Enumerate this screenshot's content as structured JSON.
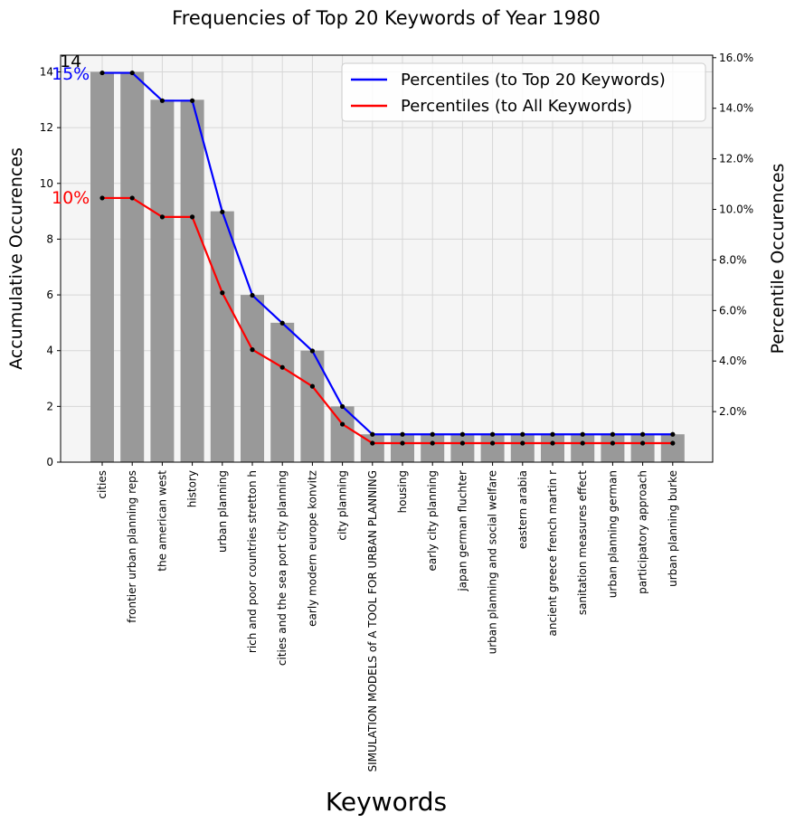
{
  "chart_data": {
    "type": "bar",
    "title": "Frequencies of Top 20 Keywords of Year 1980",
    "xlabel": "Keywords",
    "ylabel": "Accumulative Occurences",
    "y2label": "Percentile Occurences",
    "ylim": [
      0,
      14.6
    ],
    "y2lim": [
      0.0,
      16.1
    ],
    "yticks": [
      "0",
      "2",
      "4",
      "6",
      "8",
      "10",
      "12",
      "14"
    ],
    "y2ticks": [
      "2.0%",
      "4.0%",
      "6.0%",
      "8.0%",
      "10.0%",
      "12.0%",
      "14.0%",
      "16.0%"
    ],
    "grid": true,
    "legend_position": "top-right",
    "bar_color": "#999999",
    "categories": [
      "cities",
      "frontier urban planning reps",
      "the american west",
      "history",
      "urban planning",
      "rich and poor countries stretton h",
      "cities and the sea port city planning",
      "early modern europe konvitz",
      "city planning",
      "SIMULATION MODELS of A TOOL FOR URBAN PLANNING",
      "housing",
      "early city planning",
      "japan german fluchter",
      "urban planning and social welfare",
      "eastern arabia",
      "ancient greece french martin r",
      "sanitation measures effect",
      "urban planning german",
      "participatory approach",
      "urban planning burke"
    ],
    "values": [
      14,
      14,
      13,
      13,
      9,
      6,
      5,
      4,
      2,
      1,
      1,
      1,
      1,
      1,
      1,
      1,
      1,
      1,
      1,
      1
    ],
    "series": [
      {
        "name": "Percentiles (to Top 20 Keywords)",
        "color": "#0000ff",
        "values": [
          15.4,
          15.4,
          14.3,
          14.3,
          9.9,
          6.6,
          5.5,
          4.4,
          2.2,
          1.1,
          1.1,
          1.1,
          1.1,
          1.1,
          1.1,
          1.1,
          1.1,
          1.1,
          1.1,
          1.1
        ]
      },
      {
        "name": "Percentiles (to All Keywords)",
        "color": "#ff0000",
        "values": [
          10.45,
          10.45,
          9.7,
          9.7,
          6.7,
          4.45,
          3.75,
          3.0,
          1.5,
          0.75,
          0.75,
          0.75,
          0.75,
          0.75,
          0.75,
          0.75,
          0.75,
          0.75,
          0.75,
          0.75
        ]
      }
    ],
    "annotations": [
      {
        "text": "14",
        "color": "#000000"
      },
      {
        "text": "15%",
        "color": "#0000ff"
      },
      {
        "text": "10%",
        "color": "#ff0000"
      }
    ]
  }
}
